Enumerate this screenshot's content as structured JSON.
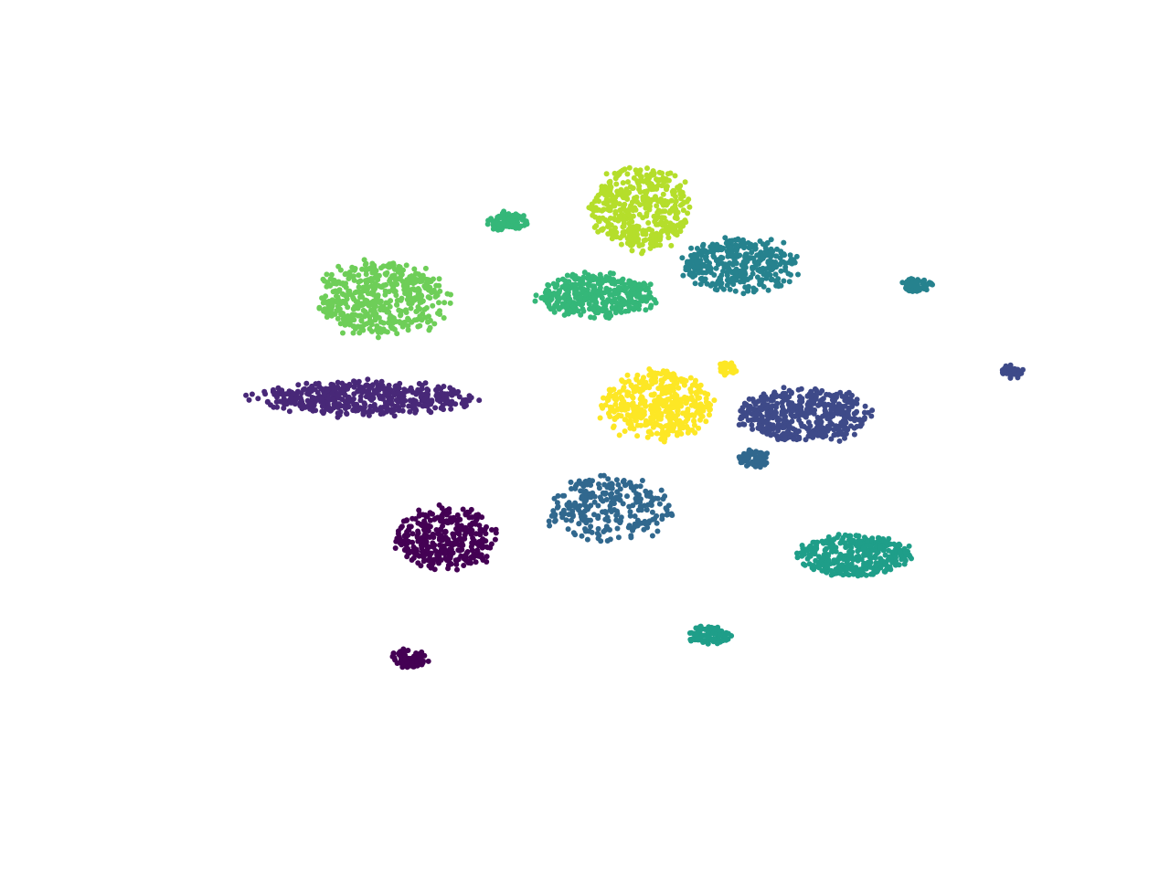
{
  "chart_data": {
    "type": "scatter",
    "title": "",
    "xlabel": "",
    "ylabel": "",
    "axes_visible": false,
    "grid": false,
    "legend": "none",
    "xlim": [
      0,
      100
    ],
    "ylim": [
      0,
      100
    ],
    "colormap": "viridis",
    "marker": "circle",
    "clusters": [
      {
        "id": "c01",
        "color": "#440154",
        "center": [
          33.0,
          35.0
        ],
        "spread": [
          5.2,
          4.6
        ],
        "count": 340
      },
      {
        "id": "c02",
        "color": "#440154",
        "center": [
          29.0,
          17.0
        ],
        "spread": [
          2.0,
          1.3
        ],
        "count": 90
      },
      {
        "id": "c03",
        "color": "#482878",
        "center": [
          24.0,
          56.0
        ],
        "spread": [
          11.8,
          2.5
        ],
        "count": 460
      },
      {
        "id": "c04",
        "color": "#3e4a89",
        "center": [
          72.5,
          53.5
        ],
        "spread": [
          7.0,
          3.9
        ],
        "count": 460
      },
      {
        "id": "c05",
        "color": "#3e4a89",
        "center": [
          95.5,
          60.0
        ],
        "spread": [
          1.3,
          0.9
        ],
        "count": 40
      },
      {
        "id": "c06",
        "color": "#31688e",
        "center": [
          51.0,
          39.5
        ],
        "spread": [
          6.8,
          4.7
        ],
        "count": 260
      },
      {
        "id": "c07",
        "color": "#31688e",
        "center": [
          67.0,
          47.0
        ],
        "spread": [
          1.6,
          1.4
        ],
        "count": 60
      },
      {
        "id": "c08",
        "color": "#26828e",
        "center": [
          65.5,
          76.0
        ],
        "spread": [
          6.2,
          3.9
        ],
        "count": 360
      },
      {
        "id": "c09",
        "color": "#26828e",
        "center": [
          85.0,
          73.0
        ],
        "spread": [
          1.7,
          1.0
        ],
        "count": 70
      },
      {
        "id": "c10",
        "color": "#1f9e89",
        "center": [
          78.0,
          32.5
        ],
        "spread": [
          5.9,
          3.0
        ],
        "count": 350
      },
      {
        "id": "c11",
        "color": "#1f9e89",
        "center": [
          62.0,
          20.5
        ],
        "spread": [
          2.3,
          1.3
        ],
        "count": 100
      },
      {
        "id": "c12",
        "color": "#35b779",
        "center": [
          49.5,
          71.5
        ],
        "spread": [
          6.4,
          3.1
        ],
        "count": 380
      },
      {
        "id": "c13",
        "color": "#35b779",
        "center": [
          40.0,
          82.5
        ],
        "spread": [
          2.3,
          1.4
        ],
        "count": 90
      },
      {
        "id": "c14",
        "color": "#6ece58",
        "center": [
          26.0,
          71.0
        ],
        "spread": [
          6.9,
          5.3
        ],
        "count": 480
      },
      {
        "id": "c15",
        "color": "#b5de2b",
        "center": [
          54.5,
          84.5
        ],
        "spread": [
          5.3,
          6.2
        ],
        "count": 440
      },
      {
        "id": "c16",
        "color": "#fde725",
        "center": [
          56.5,
          55.0
        ],
        "spread": [
          5.9,
          4.9
        ],
        "count": 430
      },
      {
        "id": "c17",
        "color": "#fde725",
        "center": [
          64.0,
          60.5
        ],
        "spread": [
          1.2,
          0.9
        ],
        "count": 35
      }
    ]
  }
}
